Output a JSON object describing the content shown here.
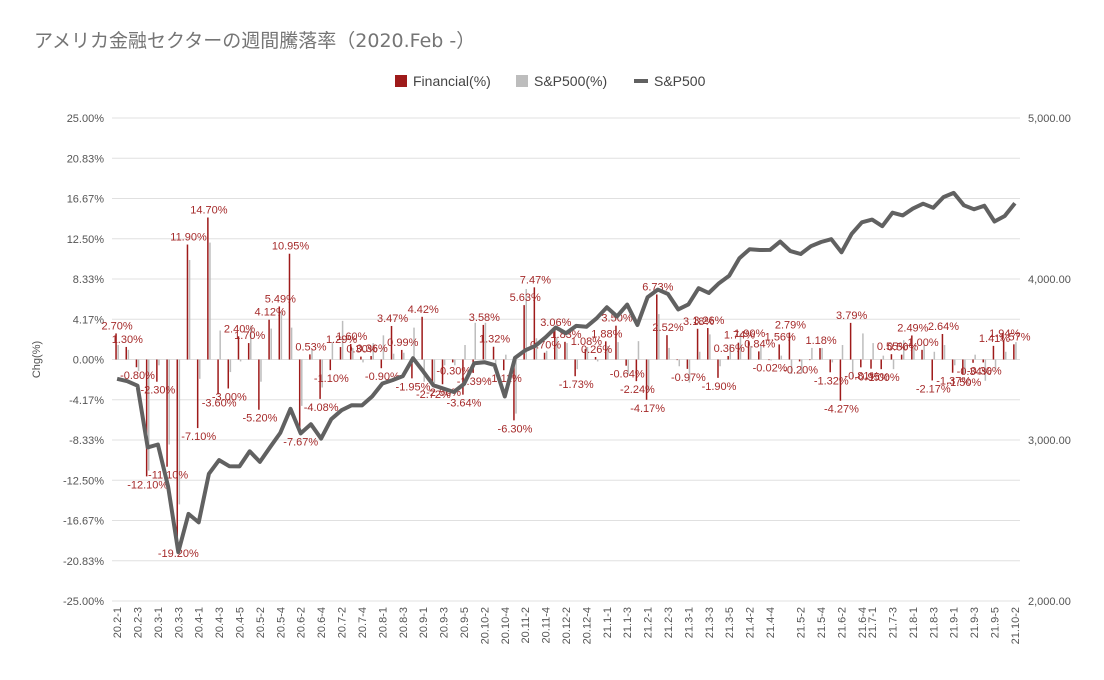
{
  "title": "アメリカ金融セクターの週間騰落率（2020.Feb -）",
  "colors": {
    "financial": "#9e1a1a",
    "sp500_pct": "#bdbdbd",
    "sp500": "#616161",
    "grid": "#e0e0e0",
    "label": "#a52a2a"
  },
  "chart_data": {
    "type": "bar+line",
    "title": "アメリカ金融セクターの週間騰落率（2020.Feb -）",
    "ylabel": "Chg(%)",
    "left_axis": {
      "ylim": [
        -25,
        25
      ],
      "ticks": [
        "-25.00%",
        "-20.83%",
        "-16.67%",
        "-12.50%",
        "-8.33%",
        "-4.17%",
        "0.00%",
        "4.17%",
        "8.33%",
        "12.50%",
        "16.67%",
        "20.83%",
        "25.00%"
      ]
    },
    "right_axis": {
      "ylim": [
        2000,
        5000
      ],
      "ticks": [
        "2,000.00",
        "3,000.00",
        "4,000.00",
        "5,000.00"
      ]
    },
    "grid": true,
    "legend_position": "top-center",
    "x": [
      "20.2-1",
      "20.2-2",
      "20.2-3",
      "20.2-4",
      "20.3-1",
      "20.3-2",
      "20.3-3",
      "20.3-4",
      "20.4-1",
      "20.4-2",
      "20.4-3",
      "20.4-4",
      "20.4-5",
      "20.5-1",
      "20.5-2",
      "20.5-3",
      "20.5-4",
      "20.6-1",
      "20.6-2",
      "20.6-3",
      "20.6-4",
      "20.7-1",
      "20.7-2",
      "20.7-3",
      "20.7-4",
      "20.7-5",
      "20.8-1",
      "20.8-2",
      "20.8-3",
      "20.8-4",
      "20.9-1",
      "20.9-2",
      "20.9-3",
      "20.9-4",
      "20.9-5",
      "20.10-1",
      "20.10-2",
      "20.10-3",
      "20.10-4",
      "20.10-5",
      "20.11-2",
      "20.11-3",
      "20.11-4",
      "20.12-1",
      "20.12-2",
      "20.12-3",
      "20.12-4",
      "20.12-5",
      "21.1-1",
      "21.1-2",
      "21.1-3",
      "21.1-4",
      "21.2-1",
      "21.2-2",
      "21.2-3",
      "21.2-4",
      "21.3-1",
      "21.3-2",
      "21.3-3",
      "21.3-4",
      "21.3-5",
      "21.4-1",
      "21.4-2",
      "21.4-3",
      "21.4-4",
      "21.4-5",
      "21.5-1",
      "21.5-2",
      "21.5-3",
      "21.5-4",
      "21.6-1",
      "21.6-2",
      "21.6-3",
      "21.6-4",
      "21.7-1",
      "21.7-2",
      "21.7-3",
      "21.7-4",
      "21.8-1",
      "21.8-2",
      "21.8-3",
      "21.8-4",
      "21.9-1",
      "21.9-2",
      "21.9-3",
      "21.9-4",
      "21.9-5",
      "21.10-1",
      "21.10-2"
    ],
    "x_tick_labels": [
      "20.2-1",
      "20.2-3",
      "20.3-1",
      "20.3-3",
      "20.4-1",
      "20.4-3",
      "20.4-5",
      "20.5-2",
      "20.5-4",
      "20.6-2",
      "20.6-4",
      "20.7-2",
      "20.7-4",
      "20.8-1",
      "20.8-3",
      "20.9-1",
      "20.9-3",
      "20.9-5",
      "20.10-2",
      "20.10-4",
      "20.11-2",
      "20.11-4",
      "20.12-2",
      "20.12-4",
      "21.1-1",
      "21.1-3",
      "21.2-1",
      "21.2-3",
      "21.3-1",
      "21.3-3",
      "21.3-5",
      "21.4-2",
      "21.4-4",
      "21.5-2",
      "21.5-4",
      "21.6-2",
      "21.6-4",
      "21.7-1",
      "21.7-3",
      "21.8-1",
      "21.8-3",
      "21.9-1",
      "21.9-3",
      "21.9-5",
      "21.10-2"
    ],
    "series": [
      {
        "name": "Financial(%)",
        "values": [
          2.7,
          1.3,
          -0.8,
          -12.1,
          -2.3,
          -11.1,
          -19.2,
          11.9,
          -7.1,
          14.7,
          -3.6,
          -3.0,
          2.4,
          1.7,
          -5.2,
          4.12,
          5.49,
          10.95,
          -7.67,
          0.53,
          -4.08,
          -1.1,
          1.29,
          1.6,
          0.3,
          0.36,
          -0.9,
          3.47,
          0.99,
          -1.95,
          4.42,
          -2.72,
          -2.56,
          -0.3,
          -3.64,
          -1.39,
          3.58,
          1.32,
          -1.11,
          -6.3,
          5.63,
          7.47,
          0.7,
          3.06,
          1.83,
          -1.73,
          1.08,
          0.26,
          1.88,
          3.5,
          -0.64,
          -2.24,
          -4.17,
          6.73,
          2.52,
          0.0,
          -0.97,
          3.18,
          3.26,
          -1.9,
          0.36,
          1.74,
          1.9,
          0.84,
          -0.02,
          1.56,
          2.79,
          -0.2,
          0.0,
          1.18,
          -1.32,
          -4.27,
          3.79,
          -0.81,
          -0.95,
          -1.0,
          0.55,
          0.5,
          2.49,
          1.0,
          -2.17,
          2.64,
          -1.37,
          -1.5,
          -0.34,
          -0.3,
          1.41,
          1.94,
          1.57
        ]
      },
      {
        "name": "S&P500(%)",
        "values": [
          1.5,
          1.0,
          -1.2,
          -11.5,
          -0.6,
          -8.8,
          -15.0,
          10.3,
          -2.0,
          12.1,
          3.0,
          -1.3,
          -0.2,
          3.5,
          -2.3,
          3.2,
          4.9,
          3.3,
          -4.8,
          1.0,
          -2.9,
          1.8,
          4.0,
          1.2,
          -0.3,
          1.7,
          2.5,
          0.6,
          0.7,
          3.3,
          -2.3,
          -2.5,
          -0.6,
          -0.6,
          1.5,
          3.8,
          3.8,
          -0.5,
          0.5,
          -5.6,
          7.3,
          2.2,
          0.9,
          2.3,
          1.7,
          -1.0,
          1.3,
          -0.2,
          1.4,
          1.8,
          -1.5,
          1.9,
          -3.3,
          4.7,
          1.2,
          -0.7,
          -2.4,
          0.8,
          2.6,
          -0.7,
          1.6,
          2.7,
          1.4,
          1.4,
          -0.1,
          0.4,
          -1.5,
          -1.4,
          1.2,
          1.2,
          -0.3,
          1.5,
          -1.9,
          2.7,
          1.7,
          0.4,
          -1.0,
          2.0,
          1.2,
          1.5,
          0.8,
          1.5,
          -0.6,
          -1.5,
          0.5,
          -2.2,
          -1.0,
          0.8,
          1.8
        ]
      },
      {
        "name": "S&P500",
        "values": [
          3380,
          3365,
          3337,
          2954,
          2972,
          2711,
          2304,
          2541,
          2488,
          2790,
          2875,
          2837,
          2836,
          2930,
          2864,
          2955,
          3044,
          3194,
          3041,
          3098,
          3009,
          3130,
          3185,
          3216,
          3215,
          3271,
          3351,
          3372,
          3397,
          3508,
          3426,
          3340,
          3319,
          3298,
          3348,
          3477,
          3483,
          3465,
          3270,
          3510,
          3557,
          3585,
          3638,
          3699,
          3663,
          3709,
          3703,
          3756,
          3824,
          3768,
          3841,
          3714,
          3887,
          3934,
          3907,
          3811,
          3842,
          3943,
          3913,
          3974,
          4020,
          4129,
          4185,
          4180,
          4181,
          4232,
          4173,
          4155,
          4204,
          4230,
          4247,
          4166,
          4281,
          4352,
          4369,
          4328,
          4412,
          4395,
          4437,
          4468,
          4442,
          4509,
          4535,
          4458,
          4433,
          4455,
          4357,
          4391,
          4471
        ]
      }
    ],
    "data_labels": {
      "positive": [
        "2.70%",
        "1.30%",
        "11.90%",
        "14.70%",
        "2.40%",
        "1.70%",
        "4.12%",
        "5.49%",
        "10.95%",
        "0.53%",
        "1.29%",
        "1.60%",
        "0.30%",
        "0.36%",
        "3.47%",
        "0.99%",
        "4.42%",
        "3.58%",
        "1.32%",
        "5.63%",
        "7.47%",
        "0.70%",
        "3.06%",
        "1.83%",
        "1.08%",
        "0.26%",
        "1.88%",
        "3.50%",
        "6.73%",
        "2.52%",
        "3.18%",
        "3.26%",
        "0.36%",
        "1.74%",
        "1.90%",
        "0.84%",
        "1.56%",
        "2.79%",
        "1.18%",
        "3.79%",
        "0.55%",
        "0.50%",
        "2.49%",
        "1.00%",
        "2.64%",
        "1.41%",
        "1.94%",
        "1.57%"
      ],
      "negative": [
        "-0.80%",
        "-12.10%",
        "-2.30%",
        "-11.10%",
        "-19.20%",
        "-7.10%",
        "-3.60%",
        "-3.00%",
        "-5.20%",
        "-7.67%",
        "-4.08%",
        "-1.10%",
        "-0.90%",
        "-1.95%",
        "-2.72%",
        "-2.56%",
        "-0.30%",
        "-3.64%",
        "-1.39%",
        "-1.11%",
        "-6.30%",
        "-1.73%",
        "-0.64%",
        "-2.24%",
        "-4.17%",
        "-0.97%",
        "-1.90%",
        "-0.02%",
        "-0.20%",
        "-1.32%",
        "-4.27%",
        "-0.81%",
        "-0.95%",
        "-1.00%",
        "-2.17%",
        "-1.37%",
        "-1.50%",
        "-0.34%",
        "-0.30%"
      ]
    }
  }
}
